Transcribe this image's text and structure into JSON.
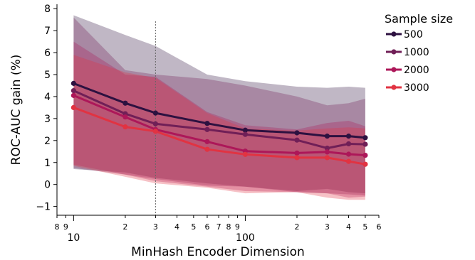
{
  "chart_data": {
    "type": "line",
    "xlabel": "MinHash Encoder Dimension",
    "ylabel": "ROC-AUC gain (%)",
    "x_scale": "log",
    "x": [
      10,
      20,
      30,
      60,
      100,
      200,
      300,
      400,
      500
    ],
    "xlim": [
      8,
      600
    ],
    "ylim": [
      -1.4,
      8.2
    ],
    "yticks": [
      -1,
      0,
      1,
      2,
      3,
      4,
      5,
      6,
      7,
      8
    ],
    "ytick_labels": [
      "−1",
      "0",
      "1",
      "2",
      "3",
      "4",
      "5",
      "6",
      "7",
      "8"
    ],
    "xticks_major": [
      {
        "value": 10,
        "label": "10"
      },
      {
        "value": 100,
        "label": "100"
      }
    ],
    "xticks_minor": [
      {
        "value": 8,
        "label": "8"
      },
      {
        "value": 9,
        "label": "9"
      },
      {
        "value": 20,
        "label": "2"
      },
      {
        "value": 30,
        "label": "3"
      },
      {
        "value": 40,
        "label": "4"
      },
      {
        "value": 50,
        "label": "5"
      },
      {
        "value": 60,
        "label": "6"
      },
      {
        "value": 70,
        "label": "7"
      },
      {
        "value": 80,
        "label": "8"
      },
      {
        "value": 90,
        "label": "9"
      },
      {
        "value": 200,
        "label": "2"
      },
      {
        "value": 300,
        "label": "3"
      },
      {
        "value": 400,
        "label": "4"
      },
      {
        "value": 500,
        "label": "5"
      },
      {
        "value": 600,
        "label": "6"
      }
    ],
    "reference_line": {
      "x": 30,
      "style": "dotted"
    },
    "grid": false,
    "legend": {
      "title": "Sample size",
      "placement": "outside-right"
    },
    "series": [
      {
        "name": "500",
        "color": "#2d1140",
        "values": [
          4.6,
          3.7,
          3.25,
          2.78,
          2.47,
          2.35,
          2.2,
          2.2,
          2.13
        ],
        "upper": [
          7.7,
          6.8,
          6.3,
          5.0,
          4.7,
          4.45,
          4.4,
          4.45,
          4.4
        ],
        "lower": [
          0.7,
          0.55,
          0.3,
          0.05,
          -0.1,
          -0.3,
          -0.2,
          -0.35,
          -0.4
        ]
      },
      {
        "name": "1000",
        "color": "#701f57",
        "values": [
          4.27,
          3.22,
          2.76,
          2.5,
          2.28,
          2.02,
          1.65,
          1.85,
          1.83
        ],
        "upper": [
          7.6,
          5.2,
          5.0,
          4.8,
          4.5,
          4.0,
          3.6,
          3.7,
          3.9
        ],
        "lower": [
          0.75,
          0.45,
          0.25,
          -0.05,
          -0.1,
          -0.35,
          -0.4,
          -0.45,
          -0.5
        ]
      },
      {
        "name": "2000",
        "color": "#ad1759",
        "values": [
          4.05,
          3.07,
          2.5,
          1.95,
          1.52,
          1.43,
          1.48,
          1.38,
          1.33
        ],
        "upper": [
          6.5,
          5.0,
          4.9,
          3.3,
          2.7,
          2.5,
          2.8,
          2.9,
          2.65
        ],
        "lower": [
          0.9,
          0.45,
          0.15,
          -0.1,
          -0.3,
          -0.35,
          -0.4,
          -0.6,
          -0.55
        ]
      },
      {
        "name": "3000",
        "color": "#e13342",
        "values": [
          3.5,
          2.62,
          2.42,
          1.6,
          1.37,
          1.22,
          1.22,
          1.05,
          0.92
        ],
        "upper": [
          5.9,
          5.1,
          4.85,
          3.25,
          2.55,
          2.45,
          2.55,
          2.6,
          2.55
        ],
        "lower": [
          0.85,
          0.35,
          0.05,
          -0.15,
          -0.4,
          -0.35,
          -0.6,
          -0.7,
          -0.7
        ]
      }
    ]
  }
}
